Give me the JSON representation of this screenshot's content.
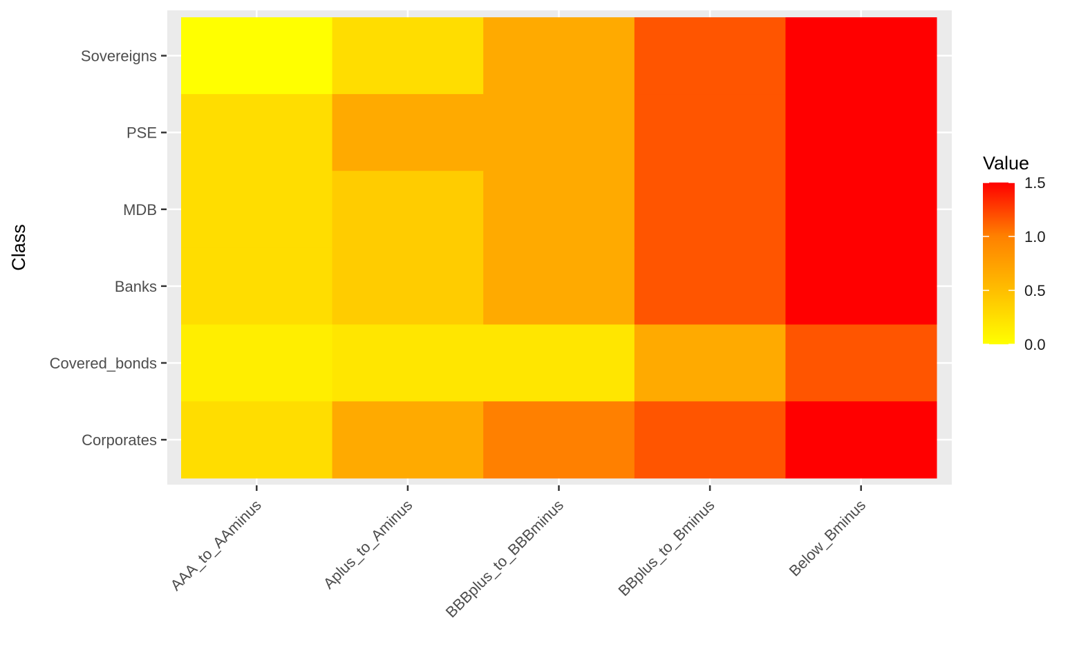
{
  "chart_data": {
    "type": "heatmap",
    "title": "",
    "xlabel": "",
    "ylabel": "Class",
    "x_categories": [
      "AAA_to_AAminus",
      "Aplus_to_Aminus",
      "BBBplus_to_BBBminus",
      "BBplus_to_Bminus",
      "Below_Bminus"
    ],
    "y_categories": [
      "Sovereigns",
      "PSE",
      "MDB",
      "Banks",
      "Covered_bonds",
      "Corporates"
    ],
    "values": [
      [
        0.0,
        0.2,
        0.5,
        1.0,
        1.5
      ],
      [
        0.2,
        0.5,
        0.5,
        1.0,
        1.5
      ],
      [
        0.2,
        0.3,
        0.5,
        1.0,
        1.5
      ],
      [
        0.2,
        0.3,
        0.5,
        1.0,
        1.5
      ],
      [
        0.1,
        0.15,
        0.15,
        0.5,
        1.0
      ],
      [
        0.2,
        0.5,
        0.75,
        1.0,
        1.5
      ]
    ],
    "legend": {
      "title": "Value",
      "position": "right",
      "breaks": [
        0.0,
        0.5,
        1.0,
        1.5
      ],
      "break_labels": [
        "0.0",
        "0.5",
        "1.0",
        "1.5"
      ],
      "range": [
        0.0,
        1.5
      ],
      "low_color": "#FFFF00",
      "high_color": "#FF0000"
    },
    "grid": true,
    "panel_background": "#EBEBEB"
  }
}
